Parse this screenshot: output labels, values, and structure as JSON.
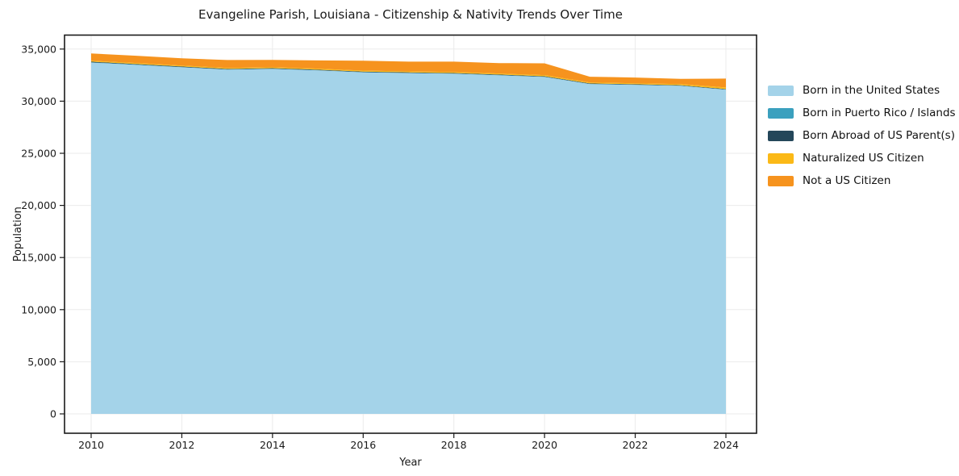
{
  "chart_data": {
    "type": "area",
    "stacked": true,
    "title": "Evangeline Parish, Louisiana - Citizenship & Nativity Trends Over Time",
    "xlabel": "Year",
    "ylabel": "Population",
    "x": [
      2010,
      2011,
      2012,
      2013,
      2014,
      2015,
      2016,
      2017,
      2018,
      2019,
      2020,
      2021,
      2022,
      2023,
      2024
    ],
    "x_ticks": [
      2010,
      2012,
      2014,
      2016,
      2018,
      2020,
      2022,
      2024
    ],
    "y_ticks": [
      0,
      5000,
      10000,
      15000,
      20000,
      25000,
      30000,
      35000
    ],
    "ylim": [
      0,
      35000
    ],
    "grid": true,
    "legend_position": "right",
    "background_color": "#ffffff",
    "grid_color": "#ebebeb",
    "frame_color": "#1a1a1a",
    "series": [
      {
        "name": "Born in the United States",
        "color": "#a4d3e9",
        "values": [
          33700,
          33480,
          33250,
          33020,
          33090,
          32950,
          32760,
          32690,
          32630,
          32480,
          32320,
          31640,
          31560,
          31470,
          31100
        ]
      },
      {
        "name": "Born in Puerto Rico / Islands",
        "color": "#3ba0be",
        "values": [
          30,
          30,
          25,
          25,
          25,
          25,
          25,
          25,
          25,
          25,
          25,
          20,
          20,
          20,
          20
        ]
      },
      {
        "name": "Born Abroad of US Parent(s)",
        "color": "#24475a",
        "values": [
          60,
          55,
          55,
          50,
          50,
          50,
          50,
          50,
          50,
          50,
          50,
          45,
          45,
          45,
          45
        ]
      },
      {
        "name": "Naturalized US Citizen",
        "color": "#fbb917",
        "values": [
          90,
          90,
          90,
          90,
          90,
          95,
          95,
          95,
          95,
          95,
          100,
          90,
          90,
          100,
          150
        ]
      },
      {
        "name": "Not a US Citizen",
        "color": "#f6931e",
        "values": [
          700,
          700,
          690,
          760,
          700,
          790,
          950,
          930,
          990,
          1000,
          1140,
          550,
          550,
          510,
          850
        ]
      }
    ]
  }
}
